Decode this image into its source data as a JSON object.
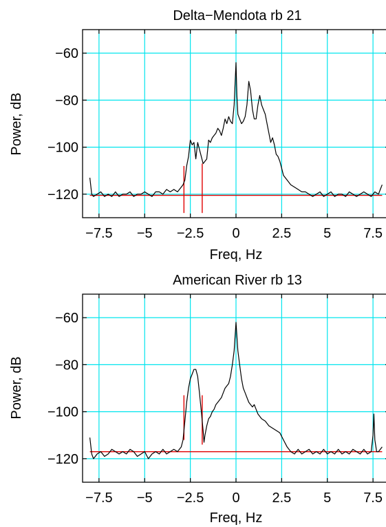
{
  "chart_data": [
    {
      "type": "line",
      "title": "Delta−Mendota     rb 21",
      "xlabel": "Freq, Hz",
      "ylabel": "Power, dB",
      "xlim": [
        -8.4,
        8.4
      ],
      "ylim": [
        -130,
        -50
      ],
      "x_ticks": [
        -7.5,
        -5,
        -2.5,
        0,
        2.5,
        5,
        7.5
      ],
      "x_tick_labels": [
        "−7.5",
        "−5",
        "−2.5",
        "0",
        "2.5",
        "5",
        "7.5"
      ],
      "y_ticks": [
        -60,
        -80,
        -100,
        -120
      ],
      "y_tick_labels": [
        "−60",
        "−80",
        "−100",
        "−120"
      ],
      "grid": true,
      "series": [
        {
          "color": "#000000",
          "x": [
            -8.0,
            -7.9,
            -7.8,
            -7.6,
            -7.4,
            -7.2,
            -7.0,
            -6.8,
            -6.6,
            -6.4,
            -6.2,
            -6.0,
            -5.8,
            -5.6,
            -5.4,
            -5.2,
            -5.0,
            -4.8,
            -4.6,
            -4.4,
            -4.2,
            -4.0,
            -3.8,
            -3.6,
            -3.4,
            -3.2,
            -3.0,
            -2.9,
            -2.8,
            -2.7,
            -2.6,
            -2.5,
            -2.4,
            -2.3,
            -2.2,
            -2.1,
            -2.0,
            -1.9,
            -1.8,
            -1.7,
            -1.6,
            -1.5,
            -1.4,
            -1.3,
            -1.2,
            -1.1,
            -1.0,
            -0.9,
            -0.8,
            -0.7,
            -0.6,
            -0.5,
            -0.4,
            -0.3,
            -0.2,
            -0.1,
            0.0,
            0.05,
            0.1,
            0.2,
            0.3,
            0.4,
            0.5,
            0.6,
            0.7,
            0.8,
            0.9,
            1.0,
            1.1,
            1.2,
            1.3,
            1.4,
            1.5,
            1.6,
            1.7,
            1.8,
            1.9,
            2.0,
            2.1,
            2.2,
            2.3,
            2.4,
            2.5,
            2.6,
            2.8,
            3.0,
            3.2,
            3.4,
            3.6,
            3.8,
            4.0,
            4.2,
            4.4,
            4.6,
            4.8,
            5.0,
            5.2,
            5.4,
            5.6,
            5.8,
            6.0,
            6.2,
            6.4,
            6.6,
            6.8,
            7.0,
            7.2,
            7.4,
            7.6,
            7.8,
            7.9,
            8.0
          ],
          "y": [
            -113,
            -120,
            -121,
            -120,
            -119,
            -121,
            -120,
            -121,
            -119,
            -121,
            -120,
            -120,
            -119,
            -121,
            -120,
            -120,
            -119,
            -120,
            -121,
            -119,
            -119,
            -120,
            -118,
            -119,
            -118,
            -119,
            -117,
            -116,
            -114,
            -108,
            -104,
            -97,
            -99,
            -98,
            -105,
            -98,
            -101,
            -104,
            -107,
            -106,
            -105,
            -97,
            -98,
            -96,
            -95,
            -94,
            -92,
            -93,
            -95,
            -92,
            -88,
            -90,
            -87,
            -89,
            -90,
            -82,
            -64,
            -78,
            -86,
            -88,
            -90,
            -89,
            -87,
            -82,
            -72,
            -76,
            -84,
            -88,
            -88,
            -82,
            -78,
            -82,
            -84,
            -86,
            -90,
            -94,
            -98,
            -96,
            -99,
            -103,
            -104,
            -106,
            -109,
            -112,
            -114,
            -116,
            -117,
            -118,
            -119,
            -119,
            -120,
            -121,
            -120,
            -119,
            -121,
            -120,
            -119,
            -121,
            -120,
            -120,
            -121,
            -119,
            -120,
            -121,
            -120,
            -119,
            -120,
            -121,
            -119,
            -120,
            -118,
            -116
          ]
        }
      ],
      "reference_lines": [
        {
          "color": "#e00000",
          "x": [
            -8.0,
            8.0
          ],
          "y": [
            -120.5,
            -120.5
          ]
        },
        {
          "color": "#e00000",
          "x": [
            -2.85,
            -2.85
          ],
          "y": [
            -108,
            -128
          ]
        },
        {
          "color": "#e00000",
          "x": [
            -1.85,
            -1.85
          ],
          "y": [
            -107,
            -128
          ]
        }
      ]
    },
    {
      "type": "line",
      "title": "American River     rb 13",
      "xlabel": "Freq, Hz",
      "ylabel": "Power, dB",
      "xlim": [
        -8.4,
        8.4
      ],
      "ylim": [
        -130,
        -50
      ],
      "x_ticks": [
        -7.5,
        -5,
        -2.5,
        0,
        2.5,
        5,
        7.5
      ],
      "x_tick_labels": [
        "−7.5",
        "−5",
        "−2.5",
        "0",
        "2.5",
        "5",
        "7.5"
      ],
      "y_ticks": [
        -60,
        -80,
        -100,
        -120
      ],
      "y_tick_labels": [
        "−60",
        "−80",
        "−100",
        "−120"
      ],
      "grid": true,
      "series": [
        {
          "color": "#000000",
          "x": [
            -8.0,
            -7.9,
            -7.8,
            -7.6,
            -7.4,
            -7.2,
            -7.0,
            -6.8,
            -6.6,
            -6.4,
            -6.2,
            -6.0,
            -5.8,
            -5.6,
            -5.4,
            -5.2,
            -5.0,
            -4.8,
            -4.6,
            -4.4,
            -4.2,
            -4.0,
            -3.8,
            -3.6,
            -3.4,
            -3.2,
            -3.0,
            -2.9,
            -2.8,
            -2.7,
            -2.6,
            -2.5,
            -2.4,
            -2.3,
            -2.2,
            -2.1,
            -2.0,
            -1.9,
            -1.8,
            -1.75,
            -1.7,
            -1.6,
            -1.5,
            -1.4,
            -1.3,
            -1.2,
            -1.1,
            -1.0,
            -0.9,
            -0.8,
            -0.7,
            -0.6,
            -0.5,
            -0.4,
            -0.3,
            -0.2,
            -0.1,
            0.0,
            0.1,
            0.2,
            0.3,
            0.4,
            0.5,
            0.6,
            0.7,
            0.8,
            0.9,
            1.0,
            1.1,
            1.2,
            1.4,
            1.6,
            1.8,
            2.0,
            2.2,
            2.4,
            2.6,
            2.8,
            3.0,
            3.2,
            3.4,
            3.6,
            3.8,
            4.0,
            4.2,
            4.4,
            4.6,
            4.8,
            5.0,
            5.2,
            5.4,
            5.6,
            5.8,
            6.0,
            6.2,
            6.4,
            6.6,
            6.8,
            7.0,
            7.2,
            7.4,
            7.5,
            7.55,
            7.6,
            7.7,
            7.8,
            8.0
          ],
          "y": [
            -111,
            -118,
            -120,
            -118,
            -117,
            -119,
            -118,
            -116,
            -117,
            -118,
            -117,
            -118,
            -116,
            -117,
            -119,
            -118,
            -117,
            -120,
            -118,
            -117,
            -118,
            -116,
            -118,
            -117,
            -116,
            -117,
            -115,
            -112,
            -104,
            -96,
            -90,
            -86,
            -84,
            -82,
            -82,
            -85,
            -92,
            -100,
            -108,
            -113,
            -110,
            -106,
            -103,
            -102,
            -100,
            -99,
            -97,
            -96,
            -95,
            -94,
            -92,
            -90,
            -89,
            -88,
            -85,
            -80,
            -74,
            -62,
            -74,
            -80,
            -86,
            -90,
            -92,
            -94,
            -96,
            -97,
            -98,
            -97,
            -99,
            -101,
            -103,
            -104,
            -106,
            -107,
            -108,
            -109,
            -112,
            -115,
            -117,
            -118,
            -116,
            -118,
            -117,
            -116,
            -118,
            -117,
            -118,
            -116,
            -118,
            -117,
            -118,
            -116,
            -118,
            -117,
            -118,
            -116,
            -117,
            -118,
            -116,
            -118,
            -117,
            -110,
            -101,
            -112,
            -117,
            -117,
            -115
          ]
        }
      ],
      "reference_lines": [
        {
          "color": "#e00000",
          "x": [
            -8.0,
            8.0
          ],
          "y": [
            -117,
            -117
          ]
        },
        {
          "color": "#e00000",
          "x": [
            -2.85,
            -2.85
          ],
          "y": [
            -93,
            -112
          ]
        },
        {
          "color": "#e00000",
          "x": [
            -1.85,
            -1.85
          ],
          "y": [
            -93,
            -114
          ]
        }
      ]
    }
  ]
}
